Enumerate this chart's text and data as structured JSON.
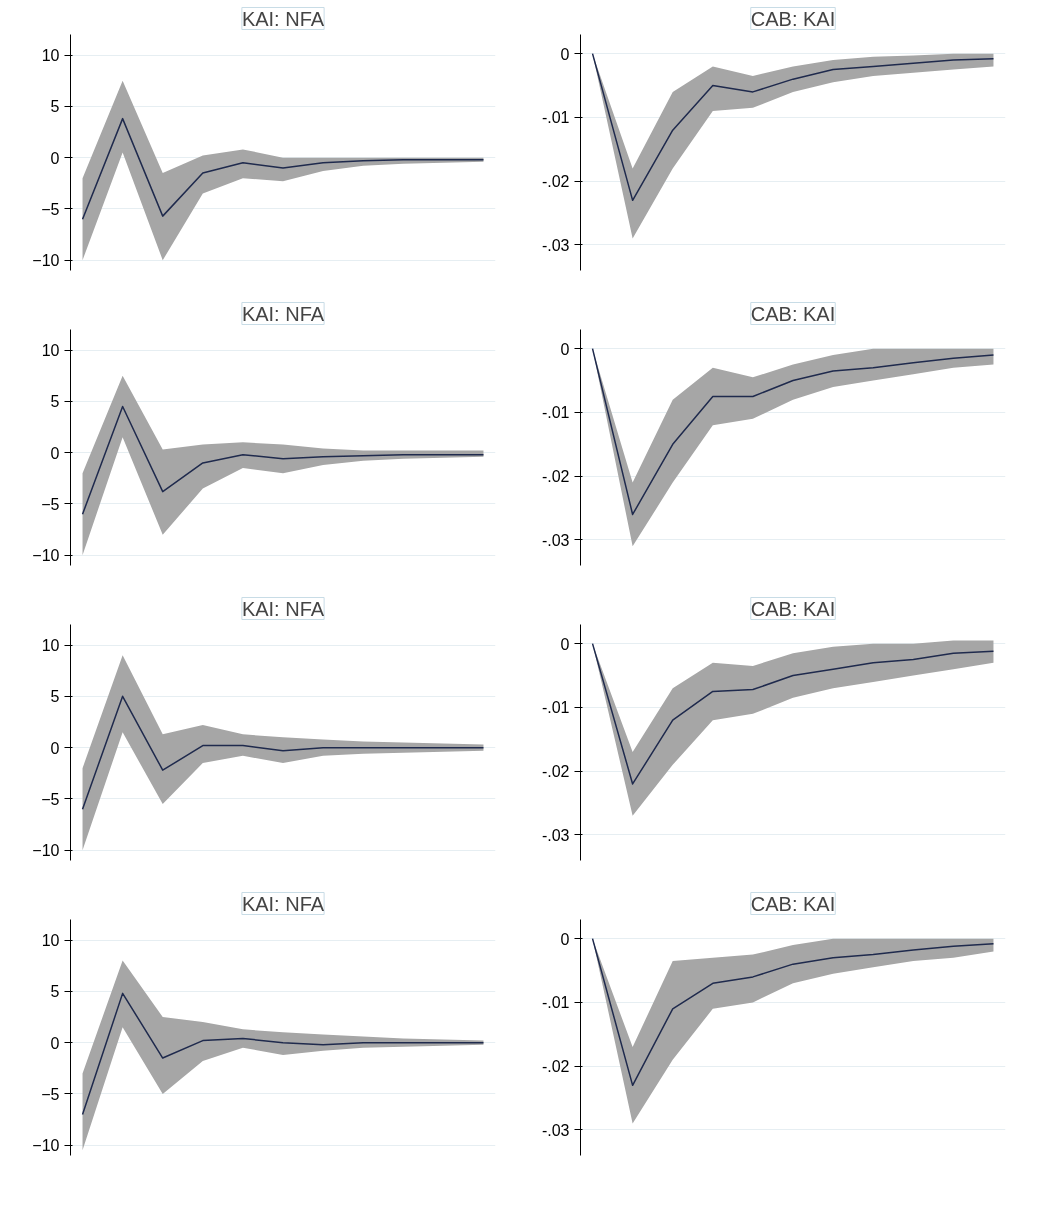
{
  "chart_data": [
    {
      "type": "line",
      "title": "KAI: NFA",
      "categories": [
        null,
        null,
        null,
        null,
        null,
        null,
        null,
        null,
        null,
        null,
        null
      ],
      "ylim": [
        -11,
        12
      ],
      "yticks": [
        10,
        5,
        0,
        -5,
        -10
      ],
      "grid": "y",
      "tick_labels": "y",
      "series": [
        {
          "color": "#1f2a4d",
          "values": [
            -6,
            3.8,
            -5.7,
            -1.5,
            -0.5,
            -1.0,
            -0.5,
            -0.3,
            -0.2,
            -0.2,
            -0.2
          ],
          "lower": [
            -10,
            0.5,
            -10,
            -3.5,
            -2,
            -2.3,
            -1.3,
            -0.8,
            -0.6,
            -0.5,
            -0.4
          ],
          "upper": [
            -2,
            7.5,
            -1.5,
            0.2,
            0.8,
            0,
            0,
            0,
            0,
            0,
            0
          ]
        }
      ]
    },
    {
      "type": "line",
      "title": "CAB: KAI",
      "categories": [
        null,
        null,
        null,
        null,
        null,
        null,
        null,
        null,
        null,
        null,
        null
      ],
      "ylim": [
        -0.034,
        0.003
      ],
      "yticks": [
        0,
        {
          "value": -0.01,
          "label": "-.01"
        },
        {
          "value": -0.02,
          "label": "-.02"
        },
        {
          "value": -0.03,
          "label": "-.03"
        }
      ],
      "grid": "y",
      "tick_labels": "y",
      "series": [
        {
          "color": "#1f2a4d",
          "values": [
            0,
            -0.023,
            -0.012,
            -0.005,
            -0.006,
            -0.004,
            -0.0025,
            -0.002,
            -0.0015,
            -0.001,
            -0.0008
          ],
          "lower": [
            0,
            -0.029,
            -0.018,
            -0.009,
            -0.0085,
            -0.006,
            -0.0045,
            -0.0035,
            -0.003,
            -0.0025,
            -0.002
          ],
          "upper": [
            0,
            -0.018,
            -0.006,
            -0.002,
            -0.0035,
            -0.002,
            -0.001,
            -0.0005,
            -0.0003,
            0,
            0
          ]
        }
      ]
    },
    {
      "type": "line",
      "title": "KAI: NFA",
      "categories": [
        null,
        null,
        null,
        null,
        null,
        null,
        null,
        null,
        null,
        null,
        null
      ],
      "ylim": [
        -11,
        12
      ],
      "yticks": [
        10,
        5,
        0,
        -5,
        -10
      ],
      "grid": "y",
      "tick_labels": "y",
      "series": [
        {
          "color": "#1f2a4d",
          "values": [
            -6,
            4.5,
            -3.8,
            -1.0,
            -0.2,
            -0.6,
            -0.4,
            -0.3,
            -0.2,
            -0.2,
            -0.2
          ],
          "lower": [
            -10,
            1.5,
            -8,
            -3.5,
            -1.5,
            -2,
            -1.2,
            -0.8,
            -0.6,
            -0.5,
            -0.4
          ],
          "upper": [
            -2,
            7.5,
            0.3,
            0.8,
            1,
            0.8,
            0.4,
            0.2,
            0.2,
            0.2,
            0.2
          ]
        }
      ]
    },
    {
      "type": "line",
      "title": "CAB: KAI",
      "categories": [
        null,
        null,
        null,
        null,
        null,
        null,
        null,
        null,
        null,
        null,
        null
      ],
      "ylim": [
        -0.034,
        0.003
      ],
      "yticks": [
        0,
        {
          "value": -0.01,
          "label": "-.01"
        },
        {
          "value": -0.02,
          "label": "-.02"
        },
        {
          "value": -0.03,
          "label": "-.03"
        }
      ],
      "grid": "y",
      "tick_labels": "y",
      "series": [
        {
          "color": "#1f2a4d",
          "values": [
            0,
            -0.026,
            -0.015,
            -0.0075,
            -0.0075,
            -0.005,
            -0.0035,
            -0.003,
            -0.0022,
            -0.0015,
            -0.001
          ],
          "lower": [
            0,
            -0.031,
            -0.021,
            -0.012,
            -0.011,
            -0.008,
            -0.006,
            -0.005,
            -0.004,
            -0.003,
            -0.0025
          ],
          "upper": [
            0,
            -0.021,
            -0.008,
            -0.003,
            -0.0045,
            -0.0025,
            -0.001,
            0,
            0,
            0,
            0
          ]
        }
      ]
    },
    {
      "type": "line",
      "title": "KAI: NFA",
      "categories": [
        null,
        null,
        null,
        null,
        null,
        null,
        null,
        null,
        null,
        null,
        null
      ],
      "ylim": [
        -11,
        12
      ],
      "yticks": [
        10,
        5,
        0,
        -5,
        -10
      ],
      "grid": "y",
      "tick_labels": "y",
      "series": [
        {
          "color": "#1f2a4d",
          "values": [
            -6,
            5,
            -2.2,
            0.2,
            0.2,
            -0.3,
            0,
            0,
            0,
            0,
            0
          ],
          "lower": [
            -10,
            1.5,
            -5.5,
            -1.5,
            -0.8,
            -1.5,
            -0.8,
            -0.6,
            -0.5,
            -0.4,
            -0.3
          ],
          "upper": [
            -2,
            9,
            1.3,
            2.2,
            1.3,
            1,
            0.8,
            0.6,
            0.5,
            0.4,
            0.3
          ]
        }
      ]
    },
    {
      "type": "line",
      "title": "CAB: KAI",
      "categories": [
        null,
        null,
        null,
        null,
        null,
        null,
        null,
        null,
        null,
        null,
        null
      ],
      "ylim": [
        -0.034,
        0.003
      ],
      "yticks": [
        0,
        {
          "value": -0.01,
          "label": "-.01"
        },
        {
          "value": -0.02,
          "label": "-.02"
        },
        {
          "value": -0.03,
          "label": "-.03"
        }
      ],
      "grid": "y",
      "tick_labels": "y",
      "series": [
        {
          "color": "#1f2a4d",
          "values": [
            0,
            -0.022,
            -0.012,
            -0.0075,
            -0.0072,
            -0.005,
            -0.004,
            -0.003,
            -0.0025,
            -0.0015,
            -0.0012
          ],
          "lower": [
            0,
            -0.027,
            -0.019,
            -0.012,
            -0.011,
            -0.0085,
            -0.007,
            -0.006,
            -0.005,
            -0.004,
            -0.003
          ],
          "upper": [
            0,
            -0.017,
            -0.007,
            -0.003,
            -0.0035,
            -0.0015,
            -0.0005,
            0,
            0,
            0.0005,
            0.0005
          ]
        }
      ]
    },
    {
      "type": "line",
      "title": "KAI: NFA",
      "categories": [
        null,
        null,
        null,
        null,
        null,
        null,
        null,
        null,
        null,
        null,
        null
      ],
      "ylim": [
        -11,
        12
      ],
      "yticks": [
        10,
        5,
        0,
        -5,
        -10
      ],
      "grid": "y",
      "tick_labels": "y",
      "series": [
        {
          "color": "#1f2a4d",
          "values": [
            -7,
            4.8,
            -1.5,
            0.2,
            0.4,
            0,
            -0.2,
            0,
            0,
            0,
            0
          ],
          "lower": [
            -10.5,
            1.5,
            -5,
            -1.8,
            -0.5,
            -1.2,
            -0.8,
            -0.5,
            -0.4,
            -0.3,
            -0.2
          ],
          "upper": [
            -3,
            8,
            2.5,
            2,
            1.3,
            1,
            0.8,
            0.6,
            0.4,
            0.3,
            0.2
          ]
        }
      ]
    },
    {
      "type": "line",
      "title": "CAB: KAI",
      "categories": [
        null,
        null,
        null,
        null,
        null,
        null,
        null,
        null,
        null,
        null,
        null
      ],
      "ylim": [
        -0.034,
        0.003
      ],
      "yticks": [
        0,
        {
          "value": -0.01,
          "label": "-.01"
        },
        {
          "value": -0.02,
          "label": "-.02"
        },
        {
          "value": -0.03,
          "label": "-.03"
        }
      ],
      "grid": "y",
      "tick_labels": "y",
      "series": [
        {
          "color": "#1f2a4d",
          "values": [
            0,
            -0.023,
            -0.011,
            -0.007,
            -0.006,
            -0.004,
            -0.003,
            -0.0025,
            -0.0018,
            -0.0012,
            -0.0008
          ],
          "lower": [
            0,
            -0.029,
            -0.019,
            -0.011,
            -0.01,
            -0.007,
            -0.0055,
            -0.0045,
            -0.0035,
            -0.003,
            -0.002
          ],
          "upper": [
            0,
            -0.017,
            -0.0035,
            -0.003,
            -0.0025,
            -0.001,
            0,
            0,
            0,
            0,
            0
          ]
        }
      ]
    }
  ]
}
